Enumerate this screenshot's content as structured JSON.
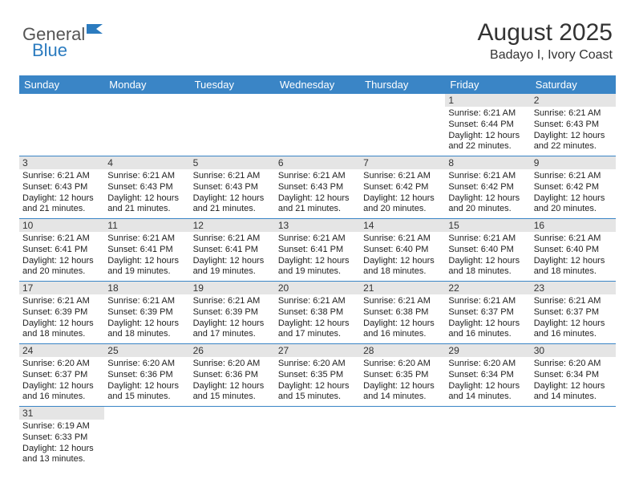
{
  "logo": {
    "part1": "General",
    "part2": "Blue"
  },
  "title": "August 2025",
  "location": "Badayo I, Ivory Coast",
  "colors": {
    "header_bg": "#3a85c6",
    "header_text": "#ffffff",
    "daynum_bg": "#e5e5e5",
    "row_border": "#3a85c6",
    "logo_gray": "#555555",
    "logo_blue": "#2b7bbf"
  },
  "day_headers": [
    "Sunday",
    "Monday",
    "Tuesday",
    "Wednesday",
    "Thursday",
    "Friday",
    "Saturday"
  ],
  "weeks": [
    [
      null,
      null,
      null,
      null,
      null,
      {
        "n": "1",
        "sr": "6:21 AM",
        "ss": "6:44 PM",
        "dl": "12 hours and 22 minutes."
      },
      {
        "n": "2",
        "sr": "6:21 AM",
        "ss": "6:43 PM",
        "dl": "12 hours and 22 minutes."
      }
    ],
    [
      {
        "n": "3",
        "sr": "6:21 AM",
        "ss": "6:43 PM",
        "dl": "12 hours and 21 minutes."
      },
      {
        "n": "4",
        "sr": "6:21 AM",
        "ss": "6:43 PM",
        "dl": "12 hours and 21 minutes."
      },
      {
        "n": "5",
        "sr": "6:21 AM",
        "ss": "6:43 PM",
        "dl": "12 hours and 21 minutes."
      },
      {
        "n": "6",
        "sr": "6:21 AM",
        "ss": "6:43 PM",
        "dl": "12 hours and 21 minutes."
      },
      {
        "n": "7",
        "sr": "6:21 AM",
        "ss": "6:42 PM",
        "dl": "12 hours and 20 minutes."
      },
      {
        "n": "8",
        "sr": "6:21 AM",
        "ss": "6:42 PM",
        "dl": "12 hours and 20 minutes."
      },
      {
        "n": "9",
        "sr": "6:21 AM",
        "ss": "6:42 PM",
        "dl": "12 hours and 20 minutes."
      }
    ],
    [
      {
        "n": "10",
        "sr": "6:21 AM",
        "ss": "6:41 PM",
        "dl": "12 hours and 20 minutes."
      },
      {
        "n": "11",
        "sr": "6:21 AM",
        "ss": "6:41 PM",
        "dl": "12 hours and 19 minutes."
      },
      {
        "n": "12",
        "sr": "6:21 AM",
        "ss": "6:41 PM",
        "dl": "12 hours and 19 minutes."
      },
      {
        "n": "13",
        "sr": "6:21 AM",
        "ss": "6:41 PM",
        "dl": "12 hours and 19 minutes."
      },
      {
        "n": "14",
        "sr": "6:21 AM",
        "ss": "6:40 PM",
        "dl": "12 hours and 18 minutes."
      },
      {
        "n": "15",
        "sr": "6:21 AM",
        "ss": "6:40 PM",
        "dl": "12 hours and 18 minutes."
      },
      {
        "n": "16",
        "sr": "6:21 AM",
        "ss": "6:40 PM",
        "dl": "12 hours and 18 minutes."
      }
    ],
    [
      {
        "n": "17",
        "sr": "6:21 AM",
        "ss": "6:39 PM",
        "dl": "12 hours and 18 minutes."
      },
      {
        "n": "18",
        "sr": "6:21 AM",
        "ss": "6:39 PM",
        "dl": "12 hours and 18 minutes."
      },
      {
        "n": "19",
        "sr": "6:21 AM",
        "ss": "6:39 PM",
        "dl": "12 hours and 17 minutes."
      },
      {
        "n": "20",
        "sr": "6:21 AM",
        "ss": "6:38 PM",
        "dl": "12 hours and 17 minutes."
      },
      {
        "n": "21",
        "sr": "6:21 AM",
        "ss": "6:38 PM",
        "dl": "12 hours and 16 minutes."
      },
      {
        "n": "22",
        "sr": "6:21 AM",
        "ss": "6:37 PM",
        "dl": "12 hours and 16 minutes."
      },
      {
        "n": "23",
        "sr": "6:21 AM",
        "ss": "6:37 PM",
        "dl": "12 hours and 16 minutes."
      }
    ],
    [
      {
        "n": "24",
        "sr": "6:20 AM",
        "ss": "6:37 PM",
        "dl": "12 hours and 16 minutes."
      },
      {
        "n": "25",
        "sr": "6:20 AM",
        "ss": "6:36 PM",
        "dl": "12 hours and 15 minutes."
      },
      {
        "n": "26",
        "sr": "6:20 AM",
        "ss": "6:36 PM",
        "dl": "12 hours and 15 minutes."
      },
      {
        "n": "27",
        "sr": "6:20 AM",
        "ss": "6:35 PM",
        "dl": "12 hours and 15 minutes."
      },
      {
        "n": "28",
        "sr": "6:20 AM",
        "ss": "6:35 PM",
        "dl": "12 hours and 14 minutes."
      },
      {
        "n": "29",
        "sr": "6:20 AM",
        "ss": "6:34 PM",
        "dl": "12 hours and 14 minutes."
      },
      {
        "n": "30",
        "sr": "6:20 AM",
        "ss": "6:34 PM",
        "dl": "12 hours and 14 minutes."
      }
    ],
    [
      {
        "n": "31",
        "sr": "6:19 AM",
        "ss": "6:33 PM",
        "dl": "12 hours and 13 minutes."
      },
      null,
      null,
      null,
      null,
      null,
      null
    ]
  ],
  "labels": {
    "sunrise": "Sunrise:",
    "sunset": "Sunset:",
    "daylight": "Daylight:"
  }
}
